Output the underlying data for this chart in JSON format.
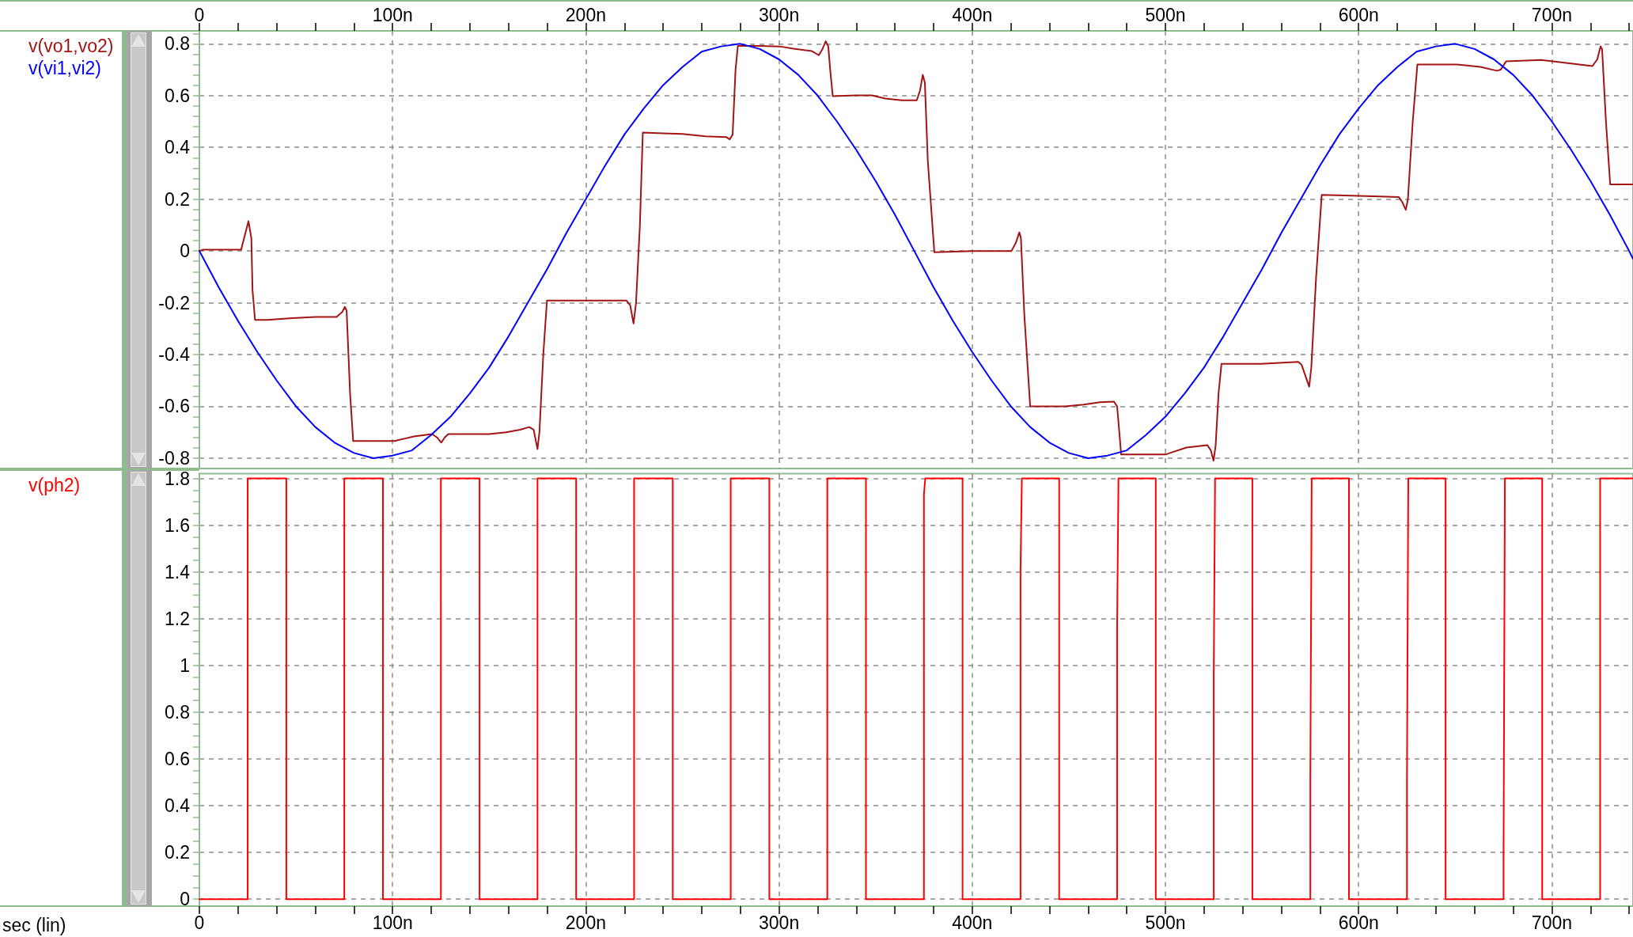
{
  "chart_data": [
    {
      "type": "line",
      "legend": "left",
      "grid": true,
      "marker": "none",
      "line_style": "solid",
      "xlim": [
        0,
        742
      ],
      "xticks": [
        0,
        {
          "value": 20,
          "label": null
        },
        {
          "value": 40,
          "label": null
        },
        {
          "value": 60,
          "label": null
        },
        {
          "value": 80,
          "label": null
        },
        {
          "value": 100,
          "label": "100n"
        },
        {
          "value": 120,
          "label": null
        },
        {
          "value": 140,
          "label": null
        },
        {
          "value": 160,
          "label": null
        },
        {
          "value": 180,
          "label": null
        },
        {
          "value": 200,
          "label": "200n"
        },
        {
          "value": 220,
          "label": null
        },
        {
          "value": 240,
          "label": null
        },
        {
          "value": 260,
          "label": null
        },
        {
          "value": 280,
          "label": null
        },
        {
          "value": 300,
          "label": "300n"
        },
        {
          "value": 320,
          "label": null
        },
        {
          "value": 340,
          "label": null
        },
        {
          "value": 360,
          "label": null
        },
        {
          "value": 380,
          "label": null
        },
        {
          "value": 400,
          "label": "400n"
        },
        {
          "value": 420,
          "label": null
        },
        {
          "value": 440,
          "label": null
        },
        {
          "value": 460,
          "label": null
        },
        {
          "value": 480,
          "label": null
        },
        {
          "value": 500,
          "label": "500n"
        },
        {
          "value": 520,
          "label": null
        },
        {
          "value": 540,
          "label": null
        },
        {
          "value": 560,
          "label": null
        },
        {
          "value": 580,
          "label": null
        },
        {
          "value": 600,
          "label": "600n"
        },
        {
          "value": 620,
          "label": null
        },
        {
          "value": 640,
          "label": null
        },
        {
          "value": 660,
          "label": null
        },
        {
          "value": 680,
          "label": null
        },
        {
          "value": 700,
          "label": "700n"
        },
        {
          "value": 720,
          "label": null
        },
        {
          "value": 740,
          "label": null
        }
      ],
      "ylim": [
        -0.84,
        0.85
      ],
      "yticks": [
        -0.8,
        {
          "value": -0.76,
          "label": null
        },
        {
          "value": -0.72,
          "label": null
        },
        {
          "value": -0.68,
          "label": null
        },
        {
          "value": -0.64,
          "label": null
        },
        -0.6,
        {
          "value": -0.56,
          "label": null
        },
        {
          "value": -0.52,
          "label": null
        },
        {
          "value": -0.48,
          "label": null
        },
        {
          "value": -0.44,
          "label": null
        },
        -0.4,
        {
          "value": -0.36,
          "label": null
        },
        {
          "value": -0.32,
          "label": null
        },
        {
          "value": -0.28,
          "label": null
        },
        {
          "value": -0.24,
          "label": null
        },
        -0.2,
        {
          "value": -0.16,
          "label": null
        },
        {
          "value": -0.12,
          "label": null
        },
        {
          "value": -0.08,
          "label": null
        },
        {
          "value": -0.04,
          "label": null
        },
        0,
        {
          "value": 0.04,
          "label": null
        },
        {
          "value": 0.08,
          "label": null
        },
        {
          "value": 0.12,
          "label": null
        },
        {
          "value": 0.16,
          "label": null
        },
        0.2,
        {
          "value": 0.24,
          "label": null
        },
        {
          "value": 0.28,
          "label": null
        },
        {
          "value": 0.32,
          "label": null
        },
        {
          "value": 0.36,
          "label": null
        },
        0.4,
        {
          "value": 0.44,
          "label": null
        },
        {
          "value": 0.48,
          "label": null
        },
        {
          "value": 0.52,
          "label": null
        },
        {
          "value": 0.56,
          "label": null
        },
        0.6,
        {
          "value": 0.64,
          "label": null
        },
        {
          "value": 0.68,
          "label": null
        },
        {
          "value": 0.72,
          "label": null
        },
        {
          "value": 0.76,
          "label": null
        },
        0.8,
        {
          "value": 0.84,
          "label": null
        }
      ],
      "series": [
        {
          "name": "v(vo1,vo2)",
          "color": "#a31515",
          "x": [
            0,
            2,
            21.6,
            23.5,
            25.4,
            26.9,
            27.5,
            28.8,
            35,
            48,
            60,
            71,
            74,
            75.3,
            76.2,
            78,
            79.6,
            90,
            101,
            106,
            111,
            120.4,
            123,
            125.2,
            127,
            128.8,
            140,
            150,
            158.7,
            166,
            170.7,
            173,
            175,
            176,
            178,
            179.9,
            200,
            221,
            223,
            224.7,
            226,
            228,
            229.5,
            240,
            250,
            262,
            272.7,
            274.5,
            276,
            277.5,
            278.7,
            290,
            300.2,
            307.5,
            317,
            320.6,
            322.5,
            324.2,
            325.5,
            326.5,
            327.8,
            340,
            348,
            355,
            363.5,
            371.3,
            373,
            374.4,
            375.5,
            377,
            380.4,
            400,
            420.3,
            422.5,
            424.4,
            425.2,
            427,
            430,
            448,
            457.7,
            466.2,
            473.4,
            475,
            477.1,
            490,
            500,
            503.6,
            510.9,
            521.7,
            523.5,
            524.9,
            526,
            527.5,
            529,
            549.5,
            568.8,
            570.5,
            574.4,
            575.5,
            578,
            580.9,
            600.2,
            620.8,
            622.5,
            624.4,
            625.5,
            628,
            630.4,
            651,
            663,
            671.5,
            673.5,
            676.3,
            694.4,
            704,
            721,
            723.5,
            725.2,
            726,
            728,
            730.2,
            742
          ],
          "values": [
            0,
            0.005,
            0.005,
            0.06,
            0.115,
            0.05,
            -0.15,
            -0.266,
            -0.266,
            -0.259,
            -0.255,
            -0.255,
            -0.235,
            -0.216,
            -0.23,
            -0.55,
            -0.734,
            -0.734,
            -0.734,
            -0.725,
            -0.716,
            -0.707,
            -0.72,
            -0.74,
            -0.72,
            -0.707,
            -0.707,
            -0.707,
            -0.7,
            -0.69,
            -0.68,
            -0.69,
            -0.765,
            -0.7,
            -0.4,
            -0.191,
            -0.191,
            -0.191,
            -0.21,
            -0.28,
            -0.2,
            0.1,
            0.457,
            0.454,
            0.452,
            0.443,
            0.44,
            0.431,
            0.45,
            0.7,
            0.792,
            0.792,
            0.79,
            0.781,
            0.772,
            0.756,
            0.78,
            0.81,
            0.79,
            0.7,
            0.598,
            0.601,
            0.601,
            0.589,
            0.582,
            0.582,
            0.62,
            0.68,
            0.65,
            0.35,
            -0.005,
            0,
            0,
            0.03,
            0.072,
            0.05,
            -0.25,
            -0.6,
            -0.6,
            -0.593,
            -0.584,
            -0.582,
            -0.6,
            -0.786,
            -0.786,
            -0.786,
            -0.777,
            -0.759,
            -0.75,
            -0.77,
            -0.81,
            -0.75,
            -0.55,
            -0.436,
            -0.436,
            -0.428,
            -0.44,
            -0.524,
            -0.45,
            -0.1,
            0.217,
            0.213,
            0.208,
            0.19,
            0.159,
            0.2,
            0.5,
            0.72,
            0.72,
            0.711,
            0.696,
            0.7,
            0.732,
            0.738,
            0.729,
            0.714,
            0.74,
            0.79,
            0.78,
            0.5,
            0.257,
            0.257
          ]
        },
        {
          "name": "v(vi1,vi2)",
          "color": "#0000ff",
          "x": [
            0,
            10,
            20,
            30,
            40,
            50,
            60,
            70,
            80,
            90,
            100,
            110,
            120,
            130,
            140,
            150,
            160,
            170,
            180,
            190,
            200,
            210,
            220,
            230,
            240,
            250,
            260,
            270,
            280,
            290,
            300,
            310,
            320,
            330,
            340,
            350,
            360,
            370,
            380,
            390,
            400,
            410,
            420,
            430,
            440,
            450,
            460,
            470,
            480,
            490,
            500,
            510,
            520,
            530,
            540,
            550,
            560,
            570,
            580,
            590,
            600,
            610,
            620,
            630,
            640,
            650,
            660,
            670,
            680,
            690,
            700,
            710,
            720,
            730,
            740,
            742
          ],
          "values": [
            0,
            -0.14,
            -0.27,
            -0.39,
            -0.5,
            -0.6,
            -0.68,
            -0.74,
            -0.78,
            -0.8,
            -0.79,
            -0.77,
            -0.71,
            -0.64,
            -0.55,
            -0.45,
            -0.33,
            -0.2,
            -0.07,
            0.07,
            0.2,
            0.33,
            0.45,
            0.55,
            0.64,
            0.71,
            0.77,
            0.79,
            0.8,
            0.78,
            0.74,
            0.68,
            0.6,
            0.5,
            0.39,
            0.27,
            0.14,
            0,
            -0.14,
            -0.27,
            -0.39,
            -0.5,
            -0.6,
            -0.68,
            -0.74,
            -0.78,
            -0.8,
            -0.79,
            -0.77,
            -0.71,
            -0.64,
            -0.55,
            -0.45,
            -0.33,
            -0.2,
            -0.07,
            0.07,
            0.2,
            0.33,
            0.45,
            0.55,
            0.64,
            0.71,
            0.77,
            0.79,
            0.8,
            0.78,
            0.74,
            0.68,
            0.6,
            0.5,
            0.39,
            0.27,
            0.14,
            0,
            -0.03
          ]
        }
      ]
    },
    {
      "type": "line",
      "legend": "left",
      "grid": true,
      "marker": "none",
      "line_style": "solid",
      "xlabel": "sec (lin)",
      "xlim": [
        0,
        742
      ],
      "xticks": [
        0,
        {
          "value": 20,
          "label": null
        },
        {
          "value": 40,
          "label": null
        },
        {
          "value": 60,
          "label": null
        },
        {
          "value": 80,
          "label": null
        },
        {
          "value": 100,
          "label": "100n"
        },
        {
          "value": 120,
          "label": null
        },
        {
          "value": 140,
          "label": null
        },
        {
          "value": 160,
          "label": null
        },
        {
          "value": 180,
          "label": null
        },
        {
          "value": 200,
          "label": "200n"
        },
        {
          "value": 220,
          "label": null
        },
        {
          "value": 240,
          "label": null
        },
        {
          "value": 260,
          "label": null
        },
        {
          "value": 280,
          "label": null
        },
        {
          "value": 300,
          "label": "300n"
        },
        {
          "value": 320,
          "label": null
        },
        {
          "value": 340,
          "label": null
        },
        {
          "value": 360,
          "label": null
        },
        {
          "value": 380,
          "label": null
        },
        {
          "value": 400,
          "label": "400n"
        },
        {
          "value": 420,
          "label": null
        },
        {
          "value": 440,
          "label": null
        },
        {
          "value": 460,
          "label": null
        },
        {
          "value": 480,
          "label": null
        },
        {
          "value": 500,
          "label": "500n"
        },
        {
          "value": 520,
          "label": null
        },
        {
          "value": 540,
          "label": null
        },
        {
          "value": 560,
          "label": null
        },
        {
          "value": 580,
          "label": null
        },
        {
          "value": 600,
          "label": "600n"
        },
        {
          "value": 620,
          "label": null
        },
        {
          "value": 640,
          "label": null
        },
        {
          "value": 660,
          "label": null
        },
        {
          "value": 680,
          "label": null
        },
        {
          "value": 700,
          "label": "700n"
        },
        {
          "value": 720,
          "label": null
        },
        {
          "value": 740,
          "label": null
        }
      ],
      "ylim": [
        -0.03,
        1.82
      ],
      "yticks": [
        0,
        {
          "value": 0.05,
          "label": null
        },
        {
          "value": 0.1,
          "label": null
        },
        {
          "value": 0.15,
          "label": null
        },
        0.2,
        {
          "value": 0.25,
          "label": null
        },
        {
          "value": 0.3,
          "label": null
        },
        {
          "value": 0.35,
          "label": null
        },
        0.4,
        {
          "value": 0.45,
          "label": null
        },
        {
          "value": 0.5,
          "label": null
        },
        {
          "value": 0.55,
          "label": null
        },
        0.6,
        {
          "value": 0.65,
          "label": null
        },
        {
          "value": 0.7,
          "label": null
        },
        {
          "value": 0.75,
          "label": null
        },
        0.8,
        {
          "value": 0.85,
          "label": null
        },
        {
          "value": 0.9,
          "label": null
        },
        {
          "value": 0.95,
          "label": null
        },
        1,
        {
          "value": 1.05,
          "label": null
        },
        {
          "value": 1.1,
          "label": null
        },
        {
          "value": 1.15,
          "label": null
        },
        1.2,
        {
          "value": 1.25,
          "label": null
        },
        {
          "value": 1.3,
          "label": null
        },
        {
          "value": 1.35,
          "label": null
        },
        1.4,
        {
          "value": 1.45,
          "label": null
        },
        {
          "value": 1.5,
          "label": null
        },
        {
          "value": 1.55,
          "label": null
        },
        1.6,
        {
          "value": 1.65,
          "label": null
        },
        {
          "value": 1.7,
          "label": null
        },
        {
          "value": 1.75,
          "label": null
        },
        1.8
      ],
      "series": [
        {
          "name": "v(ph2)",
          "color": "#ff0000",
          "x": [
            0,
            25,
            25,
            45,
            45,
            75,
            75,
            95,
            95,
            125,
            125,
            145,
            145,
            175,
            175,
            195,
            195,
            225,
            225,
            245,
            245,
            275,
            275,
            295,
            295,
            325,
            325,
            345,
            345,
            375,
            375,
            375.7,
            395,
            395,
            425,
            425,
            425.7,
            445,
            445,
            475,
            475,
            475.7,
            495,
            495,
            525,
            525,
            525.7,
            545,
            545,
            575,
            575,
            575.7,
            595,
            595,
            625,
            625,
            625.7,
            645,
            645,
            675,
            675,
            675.7,
            695,
            695,
            725,
            725,
            742
          ],
          "values": [
            0,
            0,
            1.8,
            1.8,
            0,
            0,
            1.8,
            1.8,
            0,
            0,
            1.8,
            1.8,
            0,
            0,
            1.8,
            1.8,
            0,
            0,
            1.8,
            1.8,
            0,
            0,
            1.8,
            1.8,
            0,
            0,
            1.8,
            1.8,
            0,
            0,
            1.73,
            1.8,
            1.8,
            0,
            0,
            1.41,
            1.8,
            1.8,
            0,
            0,
            1.17,
            1.8,
            1.8,
            0,
            0,
            0.96,
            1.8,
            1.8,
            0,
            0,
            0.52,
            1.8,
            1.8,
            0,
            0,
            0.5,
            1.8,
            1.8,
            0,
            0,
            0.17,
            1.8,
            1.8,
            0,
            0,
            1.8,
            1.8
          ]
        }
      ]
    }
  ]
}
